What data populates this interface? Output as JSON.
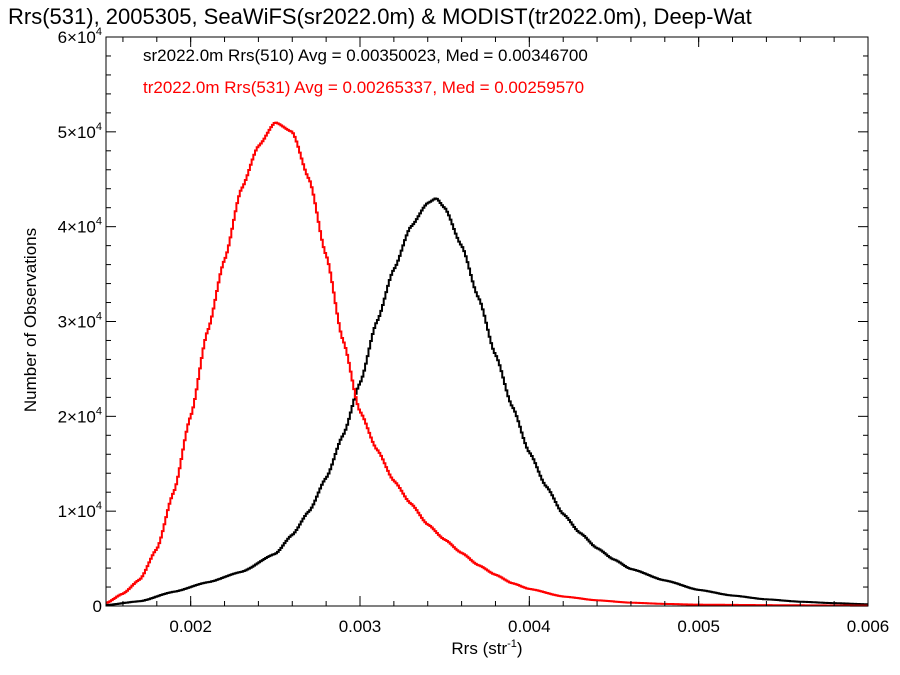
{
  "chart_data": {
    "type": "line",
    "title": "Rrs(531), 2005305, SeaWiFS(sr2022.0m) & MODIST(tr2022.0m), Deep-Wat",
    "xlabel_base": "Rrs (str",
    "xlabel_exp": "-1",
    "xlabel_close": ")",
    "ylabel": "Number of Observations",
    "xlim": [
      0.0015,
      0.006
    ],
    "ylim": [
      0,
      60000
    ],
    "x_ticks": [
      {
        "value": 0.002,
        "label": "0.002"
      },
      {
        "value": 0.003,
        "label": "0.003"
      },
      {
        "value": 0.004,
        "label": "0.004"
      },
      {
        "value": 0.005,
        "label": "0.005"
      },
      {
        "value": 0.006,
        "label": "0.006"
      }
    ],
    "y_ticks": [
      {
        "value": 0,
        "mant": "0",
        "exp": ""
      },
      {
        "value": 10000,
        "mant": "1×10",
        "exp": "4"
      },
      {
        "value": 20000,
        "mant": "2×10",
        "exp": "4"
      },
      {
        "value": 30000,
        "mant": "3×10",
        "exp": "4"
      },
      {
        "value": 40000,
        "mant": "4×10",
        "exp": "4"
      },
      {
        "value": 50000,
        "mant": "5×10",
        "exp": "4"
      },
      {
        "value": 60000,
        "mant": "6×10",
        "exp": "4"
      }
    ],
    "legend": [
      {
        "text": "sr2022.0m Rrs(510) Avg = 0.00350023, Med = 0.00346700",
        "color": "#000000"
      },
      {
        "text": "tr2022.0m Rrs(531) Avg = 0.00265337, Med = 0.00259570",
        "color": "#ff0000"
      }
    ],
    "series": [
      {
        "color": "#000000",
        "x": [
          0.0015,
          0.0017,
          0.0019,
          0.0021,
          0.0023,
          0.0025,
          0.0026,
          0.0027,
          0.0028,
          0.0029,
          0.003,
          0.0031,
          0.0032,
          0.0033,
          0.0034,
          0.00345,
          0.0035,
          0.0036,
          0.0037,
          0.0038,
          0.0039,
          0.004,
          0.0041,
          0.0042,
          0.0043,
          0.0044,
          0.0045,
          0.0046,
          0.0048,
          0.005,
          0.0052,
          0.0054,
          0.0056,
          0.0058,
          0.006
        ],
        "y": [
          100,
          500,
          1500,
          2500,
          3600,
          5500,
          7500,
          10000,
          13500,
          18000,
          23500,
          30000,
          35500,
          40000,
          42500,
          43000,
          42000,
          38000,
          32500,
          26500,
          21000,
          16200,
          12600,
          9700,
          7700,
          6100,
          4900,
          3900,
          2700,
          1700,
          1100,
          700,
          450,
          300,
          180
        ]
      },
      {
        "color": "#ff0000",
        "x": [
          0.0015,
          0.0016,
          0.0017,
          0.0018,
          0.0019,
          0.002,
          0.0021,
          0.0022,
          0.0023,
          0.0024,
          0.0025,
          0.0026,
          0.0027,
          0.0028,
          0.0029,
          0.003,
          0.0031,
          0.0032,
          0.0033,
          0.0034,
          0.0035,
          0.0036,
          0.0037,
          0.0038,
          0.0039,
          0.004,
          0.0042,
          0.0044,
          0.0046,
          0.0048,
          0.005,
          0.0055,
          0.006
        ],
        "y": [
          300,
          1300,
          2800,
          6000,
          12000,
          20000,
          29000,
          36500,
          44000,
          48500,
          51000,
          50000,
          45000,
          37000,
          28000,
          20500,
          16500,
          13200,
          10800,
          8600,
          7000,
          5600,
          4300,
          3300,
          2400,
          1800,
          1000,
          600,
          350,
          220,
          140,
          80,
          40
        ]
      }
    ]
  }
}
